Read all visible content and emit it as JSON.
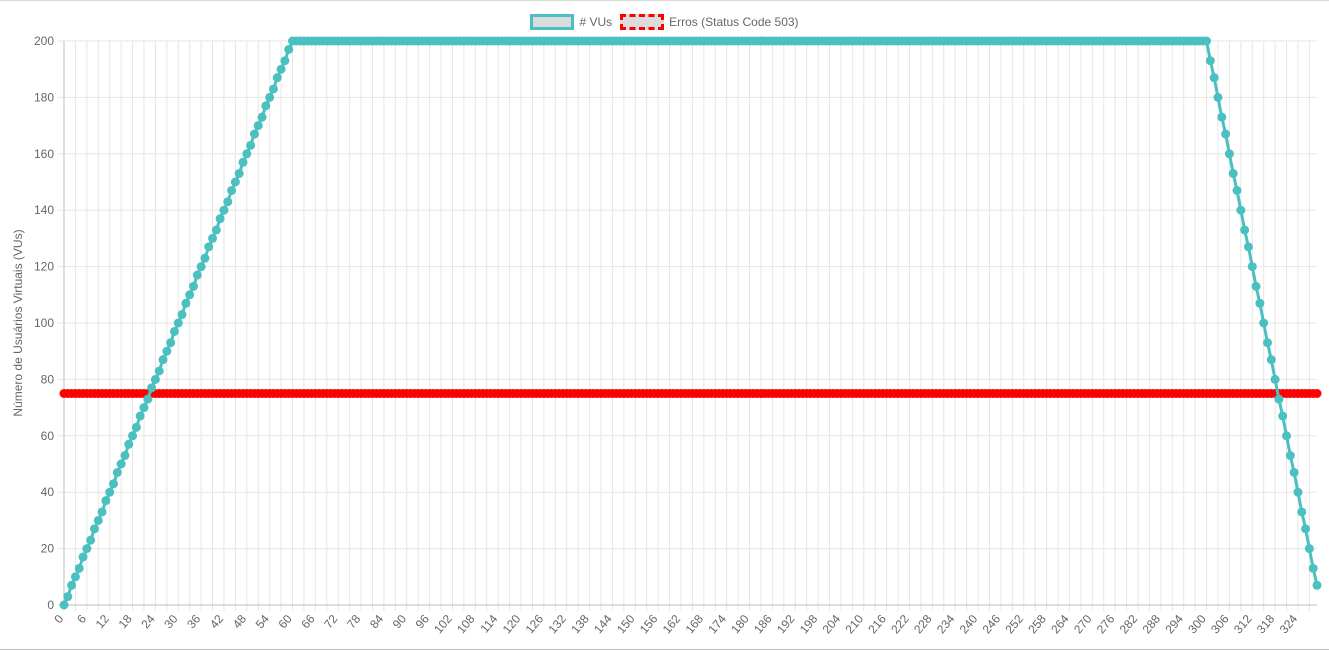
{
  "chart_data": {
    "type": "line",
    "ylabel": "Número de Usuários Virtuais (VUs)",
    "xlabel": "",
    "ylim": [
      0,
      200
    ],
    "yticks": [
      0,
      20,
      40,
      60,
      80,
      100,
      120,
      140,
      160,
      180,
      200
    ],
    "x_range": [
      0,
      329
    ],
    "x_ticks": [
      0,
      6,
      12,
      18,
      24,
      30,
      36,
      42,
      48,
      54,
      60,
      66,
      72,
      78,
      84,
      90,
      96,
      102,
      108,
      114,
      120,
      126,
      132,
      138,
      144,
      150,
      156,
      162,
      168,
      174,
      180,
      186,
      192,
      198,
      204,
      210,
      216,
      222,
      228,
      234,
      240,
      246,
      252,
      258,
      264,
      270,
      276,
      282,
      288,
      294,
      300,
      306,
      312,
      318,
      324
    ],
    "grid": true,
    "legend_position": "top-center",
    "series": [
      {
        "name": "# VUs",
        "color": "#4bc0c0",
        "fill": "#dcdcdc",
        "points": [
          [
            0,
            0
          ],
          [
            1,
            3
          ],
          [
            2,
            7
          ],
          [
            3,
            10
          ],
          [
            4,
            13
          ],
          [
            5,
            17
          ],
          [
            6,
            20
          ],
          [
            7,
            23
          ],
          [
            8,
            27
          ],
          [
            9,
            30
          ],
          [
            10,
            33
          ],
          [
            11,
            37
          ],
          [
            12,
            40
          ],
          [
            13,
            43
          ],
          [
            14,
            47
          ],
          [
            15,
            50
          ],
          [
            16,
            53
          ],
          [
            17,
            57
          ],
          [
            18,
            60
          ],
          [
            19,
            63
          ],
          [
            20,
            67
          ],
          [
            21,
            70
          ],
          [
            22,
            73
          ],
          [
            23,
            77
          ],
          [
            24,
            80
          ],
          [
            25,
            83
          ],
          [
            26,
            87
          ],
          [
            27,
            90
          ],
          [
            28,
            93
          ],
          [
            29,
            97
          ],
          [
            30,
            100
          ],
          [
            31,
            103
          ],
          [
            32,
            107
          ],
          [
            33,
            110
          ],
          [
            34,
            113
          ],
          [
            35,
            117
          ],
          [
            36,
            120
          ],
          [
            37,
            123
          ],
          [
            38,
            127
          ],
          [
            39,
            130
          ],
          [
            40,
            133
          ],
          [
            41,
            137
          ],
          [
            42,
            140
          ],
          [
            43,
            143
          ],
          [
            44,
            147
          ],
          [
            45,
            150
          ],
          [
            46,
            153
          ],
          [
            47,
            157
          ],
          [
            48,
            160
          ],
          [
            49,
            163
          ],
          [
            50,
            167
          ],
          [
            51,
            170
          ],
          [
            52,
            173
          ],
          [
            53,
            177
          ],
          [
            54,
            180
          ],
          [
            55,
            183
          ],
          [
            56,
            187
          ],
          [
            57,
            190
          ],
          [
            58,
            193
          ],
          [
            59,
            197
          ],
          [
            60,
            200
          ],
          [
            300,
            200
          ],
          [
            301,
            193
          ],
          [
            302,
            187
          ],
          [
            303,
            180
          ],
          [
            304,
            173
          ],
          [
            305,
            167
          ],
          [
            306,
            160
          ],
          [
            307,
            153
          ],
          [
            308,
            147
          ],
          [
            309,
            140
          ],
          [
            310,
            133
          ],
          [
            311,
            127
          ],
          [
            312,
            120
          ],
          [
            313,
            113
          ],
          [
            314,
            107
          ],
          [
            315,
            100
          ],
          [
            316,
            93
          ],
          [
            317,
            87
          ],
          [
            318,
            80
          ],
          [
            319,
            73
          ],
          [
            320,
            67
          ],
          [
            321,
            60
          ],
          [
            322,
            53
          ],
          [
            323,
            47
          ],
          [
            324,
            40
          ],
          [
            325,
            33
          ],
          [
            326,
            27
          ],
          [
            327,
            20
          ],
          [
            328,
            13
          ],
          [
            329,
            7
          ]
        ]
      },
      {
        "name": "Erros (Status Code 503)",
        "color": "#ff0000",
        "fill": "#dcdcdc",
        "dashed_legend": true,
        "points": [
          [
            0,
            75
          ],
          [
            329,
            75
          ]
        ]
      }
    ]
  }
}
